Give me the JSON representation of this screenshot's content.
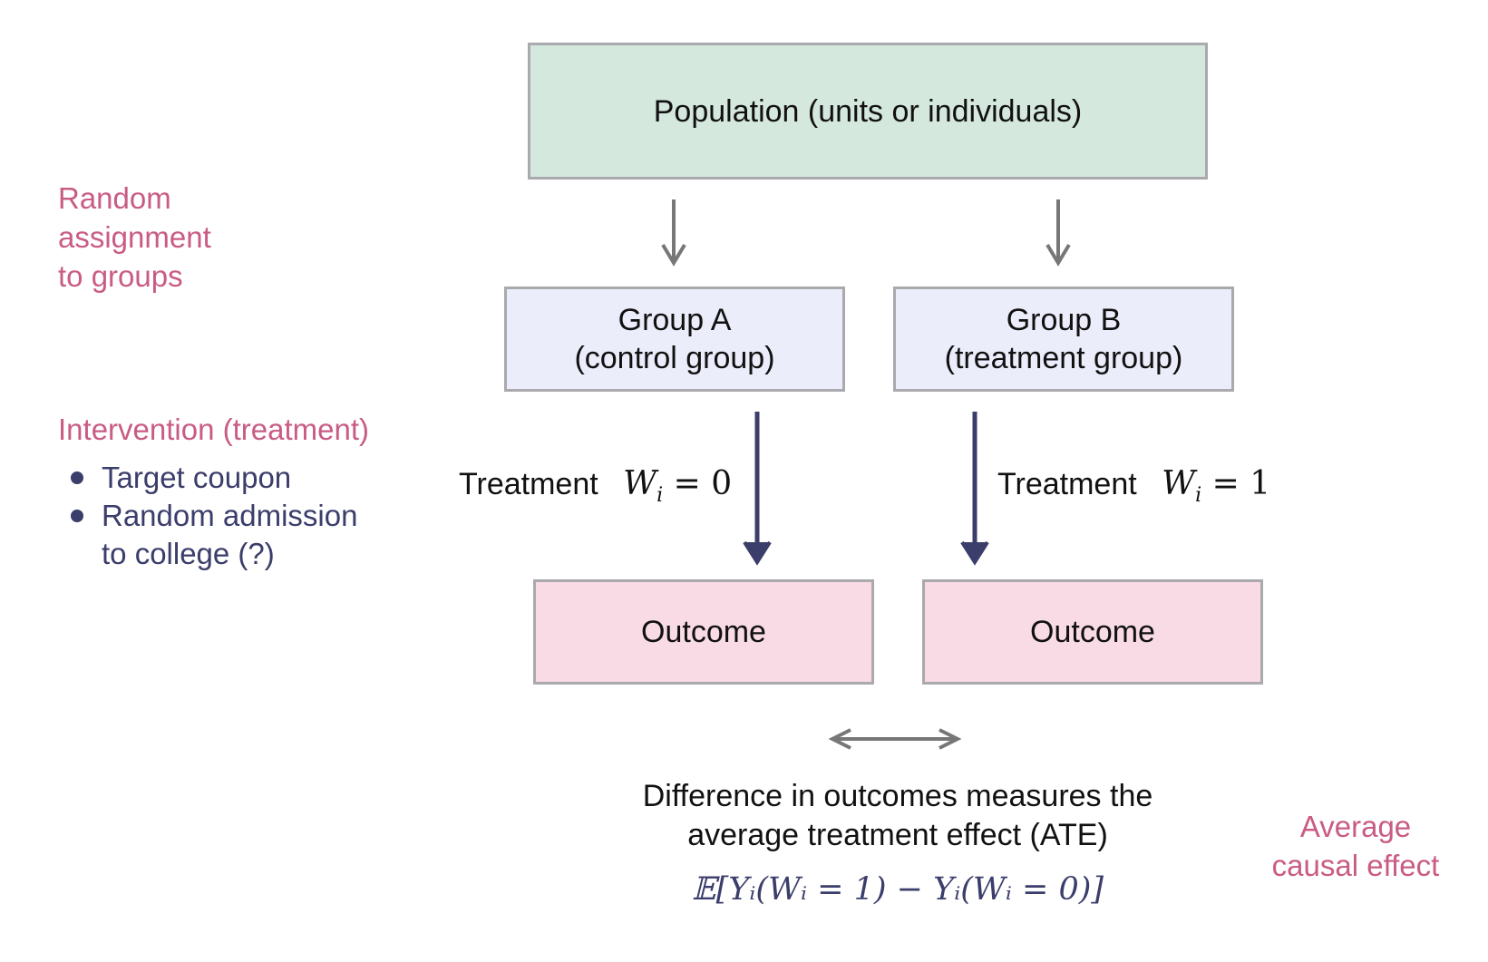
{
  "population": {
    "label": "Population (units or individuals)"
  },
  "side_labels": {
    "random_assignment": [
      "Random",
      "assignment",
      "to groups"
    ],
    "intervention_title": "Intervention (treatment)",
    "intervention_items": [
      "Target coupon",
      "Random admission",
      "to college (?)"
    ],
    "average_causal_effect": [
      "Average",
      "causal effect"
    ]
  },
  "groups": {
    "a": {
      "line1": "Group A",
      "line2": "(control group)"
    },
    "b": {
      "line1": "Group B",
      "line2": "(treatment group)"
    }
  },
  "treatment": {
    "a": {
      "word": "Treatment",
      "var": "W",
      "sub": "i",
      "rel": "= 0"
    },
    "b": {
      "word": "Treatment",
      "var": "W",
      "sub": "i",
      "rel": "= 1"
    }
  },
  "outcomes": {
    "a": "Outcome",
    "b": "Outcome"
  },
  "difference": {
    "line1": "Difference in outcomes measures the",
    "line2": "average treatment effect (ATE)",
    "formula": "𝔼[Yᵢ(Wᵢ = 1) − Yᵢ(Wᵢ = 0)]"
  },
  "colors": {
    "accent_pink": "#c95c84",
    "accent_navy": "#3b3d6b",
    "gray_arrow": "#777777",
    "population_fill": "#d5e8de",
    "group_fill": "#ecedfb",
    "outcome_fill": "#f9dbe5"
  }
}
